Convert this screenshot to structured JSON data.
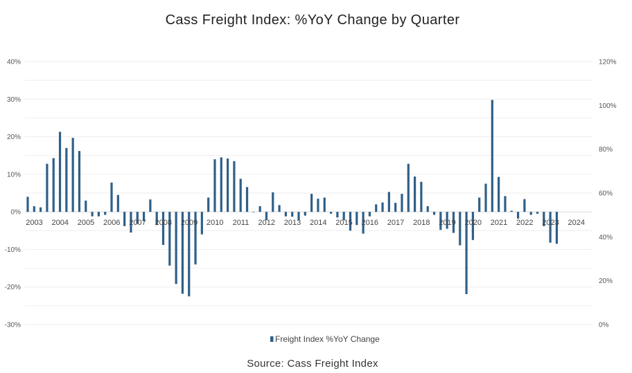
{
  "chart_data": {
    "type": "bar",
    "title": "Cass Freight Index: %YoY Change by Quarter",
    "source": "Source: Cass Freight Index",
    "series": [
      {
        "name": "Freight Index %YoY Change",
        "color": "#2f5f88",
        "values": [
          4.0,
          1.5,
          1.2,
          12.8,
          14.3,
          21.3,
          17.0,
          19.7,
          16.2,
          3.0,
          -1.2,
          -1.2,
          -0.8,
          7.8,
          4.5,
          -3.8,
          -5.5,
          -3.2,
          -2.5,
          3.3,
          -3.5,
          -8.8,
          -14.3,
          -19.2,
          -21.8,
          -22.5,
          -14.0,
          -6.0,
          3.8,
          14.0,
          14.5,
          14.2,
          13.5,
          8.8,
          6.6,
          0.0,
          1.5,
          -2.2,
          5.2,
          1.8,
          -1.2,
          -1.3,
          -2.3,
          -1.0,
          4.8,
          3.5,
          3.8,
          -0.5,
          -1.5,
          -2.2,
          -5.0,
          -3.5,
          -5.8,
          -1.2,
          2.0,
          2.5,
          5.3,
          2.4,
          4.8,
          12.8,
          9.4,
          8.0,
          1.5,
          -0.8,
          -4.8,
          -4.5,
          -5.6,
          -8.9,
          -21.9,
          -7.5,
          3.8,
          7.5,
          29.8,
          9.3,
          4.2,
          0.3,
          -1.8,
          3.4,
          -0.8,
          -0.5,
          -3.8,
          -8.2,
          -8.5
        ]
      }
    ],
    "x_labels": [
      "2003",
      "2004",
      "2005",
      "2006",
      "2007",
      "2008",
      "2009",
      "2010",
      "2011",
      "2012",
      "2013",
      "2014",
      "2015",
      "2016",
      "2017",
      "2018",
      "2019",
      "2020",
      "2021",
      "2022",
      "2023",
      "2024"
    ],
    "y_left": {
      "ticks": [
        "-30%",
        "-20%",
        "-10%",
        "0%",
        "10%",
        "20%",
        "30%",
        "40%"
      ],
      "min": -30,
      "max": 40
    },
    "y_right": {
      "ticks": [
        "0%",
        "20%",
        "40%",
        "60%",
        "80%",
        "100%",
        "120%"
      ],
      "min": 0,
      "max": 120
    },
    "legend": {
      "position": "bottom",
      "label": "Freight Index %YoY Change"
    },
    "grid": true
  }
}
